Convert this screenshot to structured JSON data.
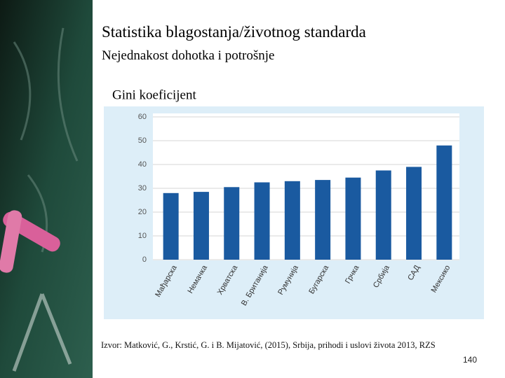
{
  "slide": {
    "title": "Statistika blagostanja/životnog standarda",
    "subtitle": "Nejednakost dohotka i potrošnje",
    "source": "Izvor: Matković, G., Krstić, G. i B. Mijatović, (2015), Srbija, prihodi i uslovi života 2013, RZS",
    "page_number": "140"
  },
  "chart_data": {
    "type": "bar",
    "title": "Gini koeficijent",
    "categories": [
      "Мађарска",
      "Немачка",
      "Хрватска",
      "В. Британија",
      "Румунија",
      "Бугарска",
      "Грчка",
      "Србија",
      "САД",
      "Мексико"
    ],
    "values": [
      28,
      28.5,
      30.5,
      32.5,
      33,
      33.5,
      34.5,
      37.5,
      39,
      48
    ],
    "color": "#1a5aa0",
    "ylim": [
      0,
      60
    ],
    "yticks": [
      0,
      10,
      20,
      30,
      40,
      50,
      60
    ],
    "grid": true
  }
}
